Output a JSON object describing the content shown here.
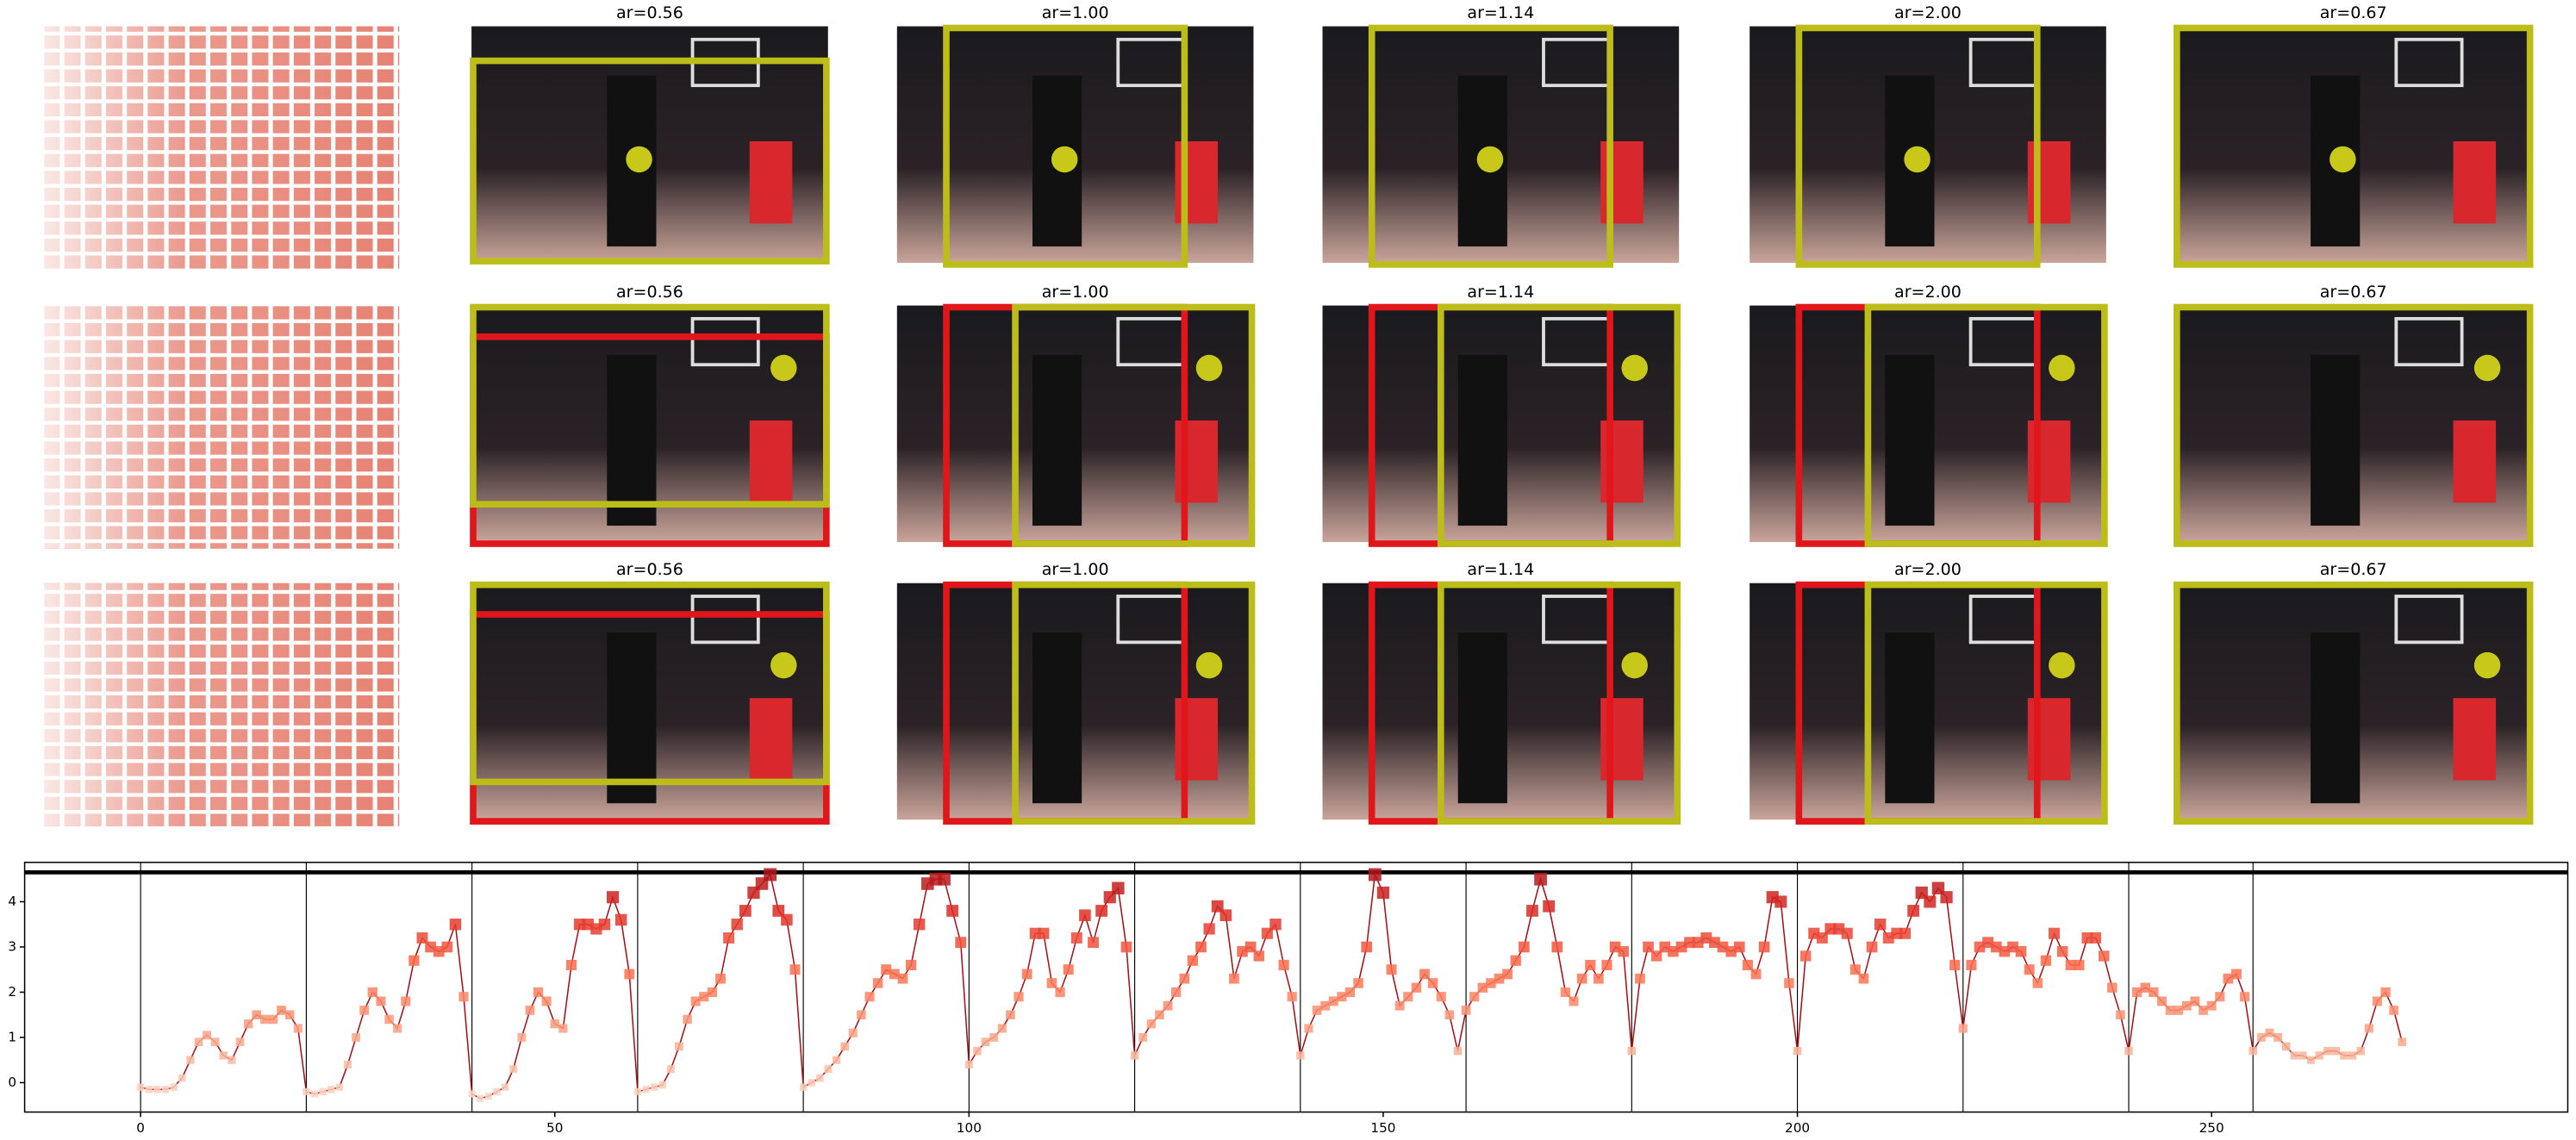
{
  "panels": {
    "rows": [
      {
        "titles": [
          "ar=0.56",
          "ar=1.00",
          "ar=1.14",
          "ar=2.00",
          "ar=0.67"
        ]
      },
      {
        "titles": [
          "ar=0.56",
          "ar=1.00",
          "ar=1.14",
          "ar=2.00",
          "ar=0.67"
        ]
      },
      {
        "titles": [
          "ar=0.56",
          "ar=1.00",
          "ar=1.14",
          "ar=2.00",
          "ar=0.67"
        ]
      }
    ]
  },
  "chart_data": {
    "type": "line",
    "x": [
      0,
      1,
      2,
      3,
      4,
      5,
      6,
      7,
      8,
      9,
      10,
      11,
      12,
      13,
      14,
      15,
      16,
      17,
      18,
      19,
      20,
      21,
      22,
      23,
      24,
      25,
      26,
      27,
      28,
      29,
      30,
      31,
      32,
      33,
      34,
      35,
      36,
      37,
      38,
      39,
      40,
      41,
      42,
      43,
      44,
      45,
      46,
      47,
      48,
      49,
      50,
      51,
      52,
      53,
      54,
      55,
      56,
      57,
      58,
      59,
      60,
      61,
      62,
      63,
      64,
      65,
      66,
      67,
      68,
      69,
      70,
      71,
      72,
      73,
      74,
      75,
      76,
      77,
      78,
      79,
      80,
      81,
      82,
      83,
      84,
      85,
      86,
      87,
      88,
      89,
      90,
      91,
      92,
      93,
      94,
      95,
      96,
      97,
      98,
      99,
      100,
      101,
      102,
      103,
      104,
      105,
      106,
      107,
      108,
      109,
      110,
      111,
      112,
      113,
      114,
      115,
      116,
      117,
      118,
      119,
      120,
      121,
      122,
      123,
      124,
      125,
      126,
      127,
      128,
      129,
      130,
      131,
      132,
      133,
      134,
      135,
      136,
      137,
      138,
      139,
      140,
      141,
      142,
      143,
      144,
      145,
      146,
      147,
      148,
      149,
      150,
      151,
      152,
      153,
      154,
      155,
      156,
      157,
      158,
      159,
      160,
      161,
      162,
      163,
      164,
      165,
      166,
      167,
      168,
      169,
      170,
      171,
      172,
      173,
      174,
      175,
      176,
      177,
      178,
      179,
      180,
      181,
      182,
      183,
      184,
      185,
      186,
      187,
      188,
      189,
      190,
      191,
      192,
      193,
      194,
      195,
      196,
      197,
      198,
      199,
      200,
      201,
      202,
      203,
      204,
      205,
      206,
      207,
      208,
      209,
      210,
      211,
      212,
      213,
      214,
      215,
      216,
      217,
      218,
      219,
      220,
      221,
      222,
      223,
      224,
      225,
      226,
      227,
      228,
      229,
      230,
      231,
      232,
      233,
      234,
      235,
      236,
      237,
      238,
      239,
      240,
      241,
      242,
      243,
      244,
      245,
      246,
      247,
      248,
      249,
      250,
      251,
      252,
      253,
      254,
      255,
      256,
      257,
      258,
      259,
      260,
      261,
      262,
      263,
      264,
      265,
      266,
      267,
      268,
      269,
      270,
      271,
      272,
      273
    ],
    "values": [
      -0.1,
      -0.15,
      -0.15,
      -0.15,
      -0.1,
      0.1,
      0.5,
      0.9,
      1.05,
      0.9,
      0.6,
      0.5,
      0.9,
      1.3,
      1.5,
      1.4,
      1.4,
      1.6,
      1.5,
      1.2,
      -0.2,
      -0.25,
      -0.2,
      -0.15,
      -0.1,
      0.4,
      1.0,
      1.6,
      2.0,
      1.8,
      1.4,
      1.2,
      1.8,
      2.7,
      3.2,
      3.0,
      2.9,
      3.0,
      3.5,
      1.9,
      -0.25,
      -0.35,
      -0.3,
      -0.2,
      -0.1,
      0.3,
      1.0,
      1.6,
      2.0,
      1.8,
      1.3,
      1.2,
      2.6,
      3.5,
      3.5,
      3.4,
      3.5,
      4.1,
      3.6,
      2.4,
      -0.2,
      -0.15,
      -0.1,
      -0.05,
      0.3,
      0.8,
      1.4,
      1.8,
      1.9,
      2.0,
      2.3,
      3.2,
      3.5,
      3.8,
      4.2,
      4.4,
      4.6,
      3.8,
      3.6,
      2.5,
      -0.1,
      0.0,
      0.1,
      0.3,
      0.5,
      0.8,
      1.1,
      1.5,
      1.9,
      2.2,
      2.5,
      2.4,
      2.3,
      2.6,
      3.5,
      4.4,
      4.5,
      4.5,
      3.8,
      3.1,
      0.4,
      0.7,
      0.9,
      1.0,
      1.2,
      1.5,
      1.9,
      2.4,
      3.3,
      3.3,
      2.2,
      2.0,
      2.5,
      3.2,
      3.7,
      3.1,
      3.8,
      4.1,
      4.3,
      3.0,
      0.6,
      1.0,
      1.3,
      1.5,
      1.7,
      2.0,
      2.3,
      2.7,
      3.0,
      3.4,
      3.9,
      3.7,
      2.3,
      2.9,
      3.0,
      2.8,
      3.3,
      3.5,
      2.6,
      1.9,
      0.6,
      1.2,
      1.6,
      1.7,
      1.8,
      1.9,
      2.0,
      2.2,
      3.0,
      4.6,
      4.2,
      2.5,
      1.7,
      1.9,
      2.1,
      2.4,
      2.2,
      1.9,
      1.5,
      0.7,
      1.6,
      1.9,
      2.1,
      2.2,
      2.3,
      2.4,
      2.7,
      3.0,
      3.8,
      4.5,
      3.9,
      3.0,
      2.0,
      1.8,
      2.3,
      2.6,
      2.3,
      2.6,
      3.0,
      2.9,
      0.7,
      2.3,
      3.0,
      2.8,
      3.0,
      2.9,
      3.0,
      3.1,
      3.1,
      3.2,
      3.1,
      3.0,
      2.9,
      3.0,
      2.6,
      2.4,
      3.0,
      4.1,
      4.0,
      2.2,
      0.7,
      2.8,
      3.3,
      3.2,
      3.4,
      3.4,
      3.3,
      2.5,
      2.3,
      3.0,
      3.5,
      3.2,
      3.3,
      3.3,
      3.8,
      4.2,
      4.0,
      4.3,
      4.1,
      2.6,
      1.2,
      2.6,
      3.0,
      3.1,
      3.0,
      2.9,
      3.0,
      2.9,
      2.5,
      2.2,
      2.7,
      3.3,
      2.9,
      2.6,
      2.6,
      3.2,
      3.2,
      2.8,
      2.1,
      1.5,
      0.7,
      2.0,
      2.1,
      2.0,
      1.8,
      1.6,
      1.6,
      1.7,
      1.8,
      1.6,
      1.7,
      1.9,
      2.3,
      2.4,
      1.9,
      0.7,
      1.0,
      1.1,
      1.0,
      0.8,
      0.6,
      0.6,
      0.5,
      0.6,
      0.7,
      0.7,
      0.6,
      0.6,
      0.7,
      1.2,
      1.8,
      2.0,
      1.6,
      0.9
    ],
    "color": "#a50f15",
    "colormap": [
      "#fee0d2",
      "#fcbba1",
      "#fc9272",
      "#fb6a4a",
      "#de2d26",
      "#a50f15"
    ],
    "xlim": [
      -14,
      293
    ],
    "ylim": [
      -0.65,
      4.87
    ],
    "xticks": [
      0,
      50,
      100,
      150,
      200,
      250
    ],
    "yticks": [
      0,
      1,
      2,
      3,
      4
    ],
    "vlines": [
      0,
      20,
      40,
      60,
      80,
      100,
      120,
      140,
      160,
      180,
      200,
      220,
      240,
      255
    ],
    "hlines": [
      4.65
    ]
  }
}
